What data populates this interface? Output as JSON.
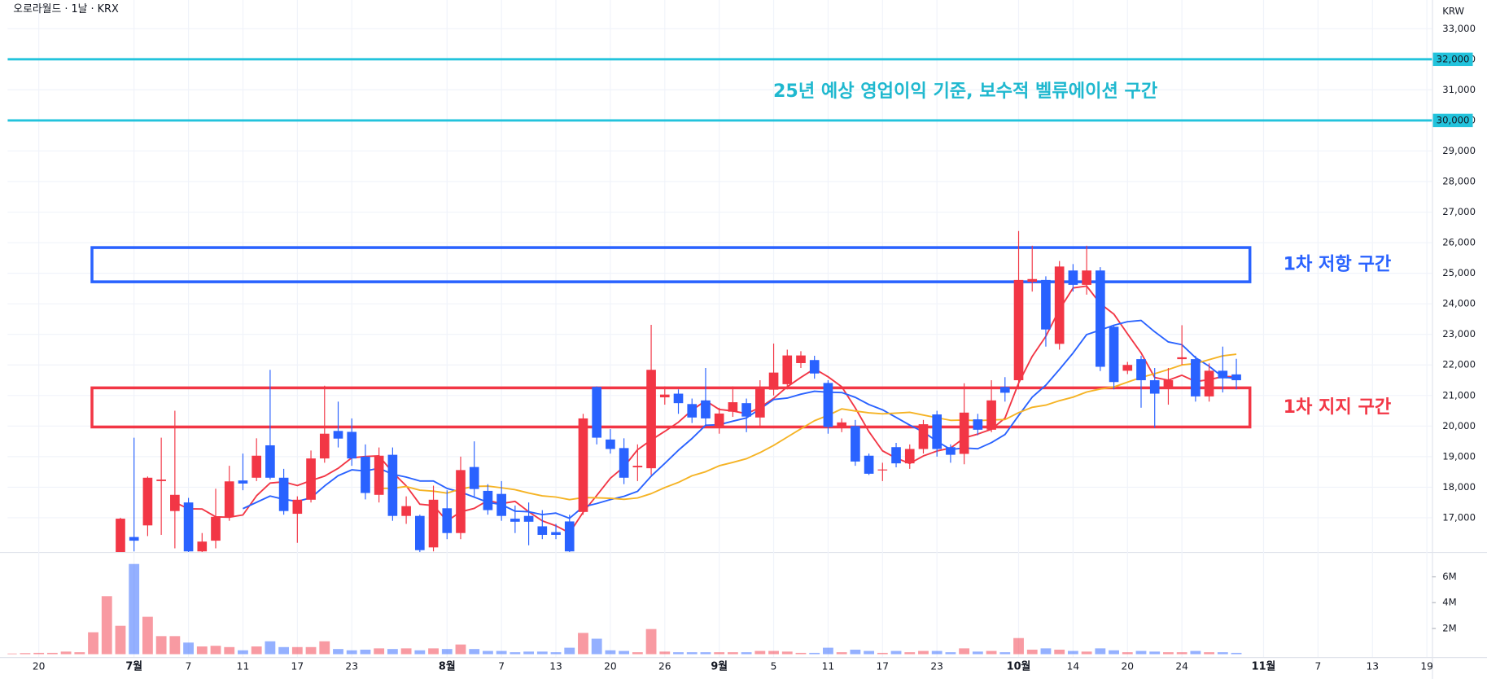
{
  "header": {
    "title": "오로라월드 · 1날 · KRX",
    "currency": "KRW"
  },
  "chart_data": {
    "type": "candlestick",
    "grid": true,
    "up_color": "#f23645",
    "down_color": "#2962ff",
    "ylim": [
      15880,
      33940
    ],
    "yticks": [
      {
        "value": 17000,
        "label": "17,000"
      },
      {
        "value": 18000,
        "label": "18,000"
      },
      {
        "value": 19000,
        "label": "19,000"
      },
      {
        "value": 20000,
        "label": "20,000"
      },
      {
        "value": 21000,
        "label": "21,000"
      },
      {
        "value": 22000,
        "label": "22,000"
      },
      {
        "value": 23000,
        "label": "23,000"
      },
      {
        "value": 24000,
        "label": "24,000"
      },
      {
        "value": 25000,
        "label": "25,000"
      },
      {
        "value": 26000,
        "label": "26,000"
      },
      {
        "value": 27000,
        "label": "27,000"
      },
      {
        "value": 28000,
        "label": "28,000"
      },
      {
        "value": 29000,
        "label": "29,000"
      },
      {
        "value": 30000,
        "label": "30,000"
      },
      {
        "value": 31000,
        "label": "31,000"
      },
      {
        "value": 32000,
        "label": "32,000"
      },
      {
        "value": 33000,
        "label": "33,000"
      }
    ],
    "categories": [
      null,
      null,
      "20",
      null,
      null,
      null,
      null,
      null,
      null,
      "7월",
      null,
      null,
      null,
      "7",
      null,
      null,
      null,
      "11",
      null,
      null,
      null,
      "17",
      null,
      null,
      null,
      "23",
      null,
      null,
      null,
      null,
      null,
      null,
      "8월",
      null,
      null,
      null,
      "7",
      null,
      null,
      null,
      "13",
      null,
      null,
      null,
      "20",
      null,
      null,
      null,
      "26",
      null,
      null,
      null,
      "9월",
      null,
      null,
      null,
      "5",
      null,
      null,
      null,
      "11",
      null,
      null,
      null,
      "17",
      null,
      null,
      null,
      "23",
      null,
      null,
      null,
      null,
      null,
      "10월",
      null,
      null,
      null,
      "14",
      null,
      null,
      null,
      "20",
      null,
      null,
      null,
      "24",
      null,
      null,
      null,
      null,
      null,
      "11월",
      null,
      null,
      null,
      "7",
      null,
      null,
      null,
      "13",
      null,
      null,
      null,
      "19"
    ],
    "open": [
      null,
      null,
      null,
      null,
      null,
      null,
      null,
      null,
      15700,
      16370,
      16750,
      18200,
      17220,
      17500,
      15900,
      16250,
      17030,
      18220,
      18310,
      19370,
      18310,
      17130,
      17590,
      18940,
      19840,
      19810,
      19000,
      17750,
      19060,
      17060,
      17060,
      16030,
      17310,
      16500,
      18660,
      17880,
      17780,
      16970,
      17060,
      16720,
      16530,
      16880,
      17190,
      21280,
      19560,
      19280,
      18650,
      18620,
      20940,
      21060,
      20720,
      20840,
      19970,
      20470,
      20750,
      20280,
      21190,
      21370,
      22060,
      22160,
      21410,
      20000,
      20000,
      19030,
      18550,
      19310,
      18780,
      19250,
      20380,
      19310,
      19090,
      20220,
      19880,
      21280,
      21500,
      24720,
      24780,
      22690,
      25090,
      24620,
      25090,
      23250,
      21810,
      22190,
      21500,
      21280,
      22190,
      22190,
      20970,
      21810,
      21690,
      null,
      null,
      null,
      null,
      null,
      null,
      null,
      null,
      null,
      null,
      null,
      null,
      null,
      null
    ],
    "high": [
      null,
      null,
      null,
      null,
      null,
      null,
      null,
      null,
      17000,
      19620,
      18350,
      19620,
      20500,
      17650,
      16500,
      17950,
      18700,
      19100,
      19600,
      21840,
      18600,
      17700,
      19200,
      21320,
      20800,
      20250,
      19400,
      19300,
      19300,
      17700,
      17100,
      18050,
      17900,
      19000,
      19500,
      18100,
      18200,
      17400,
      17500,
      17250,
      16800,
      17100,
      20400,
      21300,
      19900,
      19600,
      19400,
      23310,
      21300,
      21200,
      20900,
      21900,
      20600,
      21300,
      20900,
      21500,
      22700,
      22500,
      22450,
      22300,
      21500,
      20250,
      20200,
      19100,
      18800,
      19450,
      19400,
      20200,
      20500,
      19400,
      21400,
      20400,
      21500,
      21600,
      26380,
      25900,
      24900,
      25400,
      25300,
      25900,
      25200,
      23300,
      22100,
      22300,
      21900,
      21900,
      23300,
      22300,
      22050,
      22600,
      22200,
      null,
      null,
      null,
      null,
      null,
      null,
      null,
      null,
      null,
      null,
      null,
      null,
      null,
      null
    ],
    "low": [
      null,
      null,
      null,
      null,
      null,
      null,
      null,
      null,
      15500,
      15900,
      16400,
      16440,
      16000,
      15600,
      15700,
      16000,
      16900,
      17900,
      18200,
      18250,
      17100,
      16180,
      17500,
      18800,
      19300,
      18700,
      17600,
      17500,
      16900,
      16800,
      15800,
      15900,
      16300,
      16300,
      17700,
      17100,
      16900,
      16500,
      16100,
      16300,
      16300,
      15800,
      17100,
      19400,
      19100,
      18100,
      18200,
      18400,
      20700,
      20400,
      20100,
      20000,
      19750,
      20300,
      19800,
      20000,
      21000,
      21200,
      21900,
      21550,
      19750,
      19800,
      18700,
      18400,
      18200,
      18650,
      18600,
      19100,
      19000,
      18800,
      18750,
      19700,
      19800,
      20800,
      21200,
      24400,
      22600,
      22500,
      24400,
      24300,
      21800,
      21200,
      21700,
      20600,
      19950,
      20700,
      22000,
      20800,
      20800,
      21100,
      21200,
      null,
      null,
      null,
      null,
      null,
      null,
      null,
      null,
      null,
      null,
      null,
      null,
      null,
      null
    ],
    "close": [
      null,
      null,
      null,
      null,
      null,
      null,
      null,
      null,
      16970,
      16250,
      18310,
      18250,
      17750,
      15900,
      16220,
      17030,
      18190,
      18120,
      19030,
      18310,
      17220,
      17590,
      18940,
      19750,
      19590,
      18940,
      17810,
      19030,
      17060,
      17380,
      15940,
      17590,
      16500,
      18560,
      17940,
      17250,
      17060,
      16870,
      16870,
      16440,
      16440,
      15900,
      20250,
      19620,
      19250,
      18310,
      18700,
      21840,
      21030,
      20750,
      20280,
      20250,
      20410,
      20780,
      20310,
      21280,
      21750,
      22310,
      22310,
      21720,
      19970,
      20120,
      18840,
      18440,
      18580,
      18780,
      19250,
      20060,
      19250,
      19060,
      20440,
      19880,
      20840,
      21090,
      24780,
      24810,
      23160,
      25220,
      24620,
      25090,
      21940,
      21440,
      22000,
      21500,
      21060,
      21500,
      22250,
      20970,
      21810,
      21560,
      21500,
      null,
      null,
      null,
      null,
      null,
      null,
      null,
      null,
      null,
      null,
      null,
      null,
      null,
      null
    ],
    "moving_averages": [
      {
        "color": "#f23645",
        "values": [
          null,
          null,
          null,
          null,
          null,
          null,
          null,
          null,
          null,
          null,
          null,
          null,
          17506,
          17292,
          17286,
          17030,
          17018,
          17092,
          17718,
          18136,
          18174,
          18054,
          18218,
          18362,
          18618,
          18962,
          19006,
          19024,
          18486,
          18044,
          17444,
          17400,
          16894,
          17194,
          17306,
          17568,
          17462,
          17536,
          17198,
          16898,
          16736,
          16504,
          17180,
          17730,
          18292,
          18666,
          19226,
          19544,
          19826,
          20126,
          20520,
          20830,
          20544,
          20494,
          20406,
          20606,
          20906,
          21286,
          21592,
          21874,
          21612,
          21286,
          20592,
          19818,
          19190,
          18952,
          18778,
          19022,
          19184,
          19280,
          19612,
          19738,
          19894,
          20262,
          21406,
          22280,
          22936,
          23812,
          24518,
          24580,
          24006,
          23662,
          23018,
          22394,
          21588,
          21500,
          21662,
          21456,
          21518,
          21618,
          21618,
          null,
          null,
          null,
          null,
          null,
          null,
          null,
          null,
          null,
          null,
          null,
          null,
          null,
          null
        ]
      },
      {
        "color": "#2962ff",
        "values": [
          null,
          null,
          null,
          null,
          null,
          null,
          null,
          null,
          null,
          null,
          null,
          null,
          null,
          null,
          null,
          null,
          null,
          17299,
          17505,
          17711,
          17602,
          17536,
          17655,
          18040,
          18377,
          18568,
          18530,
          18621,
          18424,
          18331,
          18203,
          18203,
          17959,
          17840,
          17675,
          17506,
          17431,
          17215,
          17196,
          17102,
          17152,
          16983,
          17358,
          17464,
          17595,
          17701,
          17865,
          18362,
          18778,
          19209,
          19593,
          20028,
          20044,
          20160,
          20266,
          20563,
          20868,
          20915,
          21043,
          21140,
          21109,
          21096,
          20939,
          20705,
          20532,
          20282,
          20032,
          19807,
          19501,
          19235,
          19282,
          19258,
          19458,
          19723,
          20343,
          20946,
          21337,
          21853,
          22390,
          22993,
          23143,
          23299,
          23415,
          23456,
          23084,
          22753,
          22662,
          22237,
          21956,
          21603,
          21559,
          null,
          null,
          null,
          null,
          null,
          null,
          null,
          null,
          null,
          null,
          null,
          null,
          null,
          null
        ]
      },
      {
        "color": "#f5b324",
        "values": [
          null,
          null,
          null,
          null,
          null,
          null,
          null,
          null,
          null,
          null,
          null,
          null,
          null,
          null,
          null,
          null,
          null,
          null,
          null,
          null,
          null,
          null,
          null,
          null,
          null,
          null,
          null,
          17960,
          17965,
          18021,
          17903,
          17870,
          17807,
          17940,
          18026,
          18037,
          17981,
          17918,
          17810,
          17717,
          17678,
          17593,
          17659,
          17652,
          17635,
          17604,
          17648,
          17789,
          17987,
          18156,
          18373,
          18506,
          18701,
          18812,
          18931,
          19132,
          19367,
          19639,
          19911,
          20175,
          20351,
          20562,
          20492,
          20433,
          20399,
          20423,
          20450,
          20361,
          20272,
          20188,
          20196,
          20177,
          20199,
          20214,
          20438,
          20614,
          20685,
          20830,
          20946,
          21114,
          21213,
          21279,
          21437,
          21590,
          21714,
          21850,
          22000,
          22045,
          22173,
          22298,
          22351,
          null,
          null,
          null,
          null,
          null,
          null,
          null,
          null,
          null,
          null,
          null,
          null,
          null,
          null
        ]
      }
    ],
    "volume": {
      "ylim": [
        0,
        7930000
      ],
      "yticks": [
        {
          "value": 2000000,
          "label": "2M"
        },
        {
          "value": 4000000,
          "label": "4M"
        },
        {
          "value": 6000000,
          "label": "6M"
        }
      ],
      "values": [
        50000,
        80000,
        100000,
        100000,
        200000,
        150000,
        1700000,
        4500000,
        2200000,
        7000000,
        2900000,
        1400000,
        1400000,
        900000,
        600000,
        650000,
        550000,
        300000,
        600000,
        1000000,
        550000,
        550000,
        550000,
        1000000,
        400000,
        300000,
        350000,
        450000,
        400000,
        450000,
        300000,
        450000,
        400000,
        750000,
        400000,
        250000,
        250000,
        150000,
        200000,
        200000,
        150000,
        500000,
        1650000,
        1200000,
        300000,
        250000,
        150000,
        1950000,
        200000,
        150000,
        150000,
        150000,
        150000,
        150000,
        150000,
        250000,
        250000,
        200000,
        100000,
        100000,
        500000,
        150000,
        350000,
        250000,
        100000,
        250000,
        150000,
        250000,
        250000,
        150000,
        450000,
        200000,
        250000,
        150000,
        1250000,
        350000,
        450000,
        350000,
        250000,
        200000,
        450000,
        300000,
        150000,
        250000,
        200000,
        150000,
        150000,
        250000,
        150000,
        150000,
        100000,
        null,
        null,
        null,
        null,
        null,
        null,
        null,
        null,
        null,
        null,
        null,
        null,
        null,
        null
      ]
    },
    "levels": [
      {
        "value": 32000,
        "label": "32,000",
        "color": "#22c3dc"
      },
      {
        "value": 30000,
        "label": "30,000",
        "color": "#22c3dc"
      }
    ],
    "annotation": {
      "text": "25년 예상 영업이익 기준, 보수적 벨류에이션 구간",
      "color": "#1fb8cf"
    },
    "zones": [
      {
        "top": 25840,
        "bottom": 24720,
        "label": "1차 저항 구간",
        "color": "#2962ff"
      },
      {
        "top": 21250,
        "bottom": 19970,
        "label": "1차 지지 구간",
        "color": "#f23645"
      }
    ]
  }
}
